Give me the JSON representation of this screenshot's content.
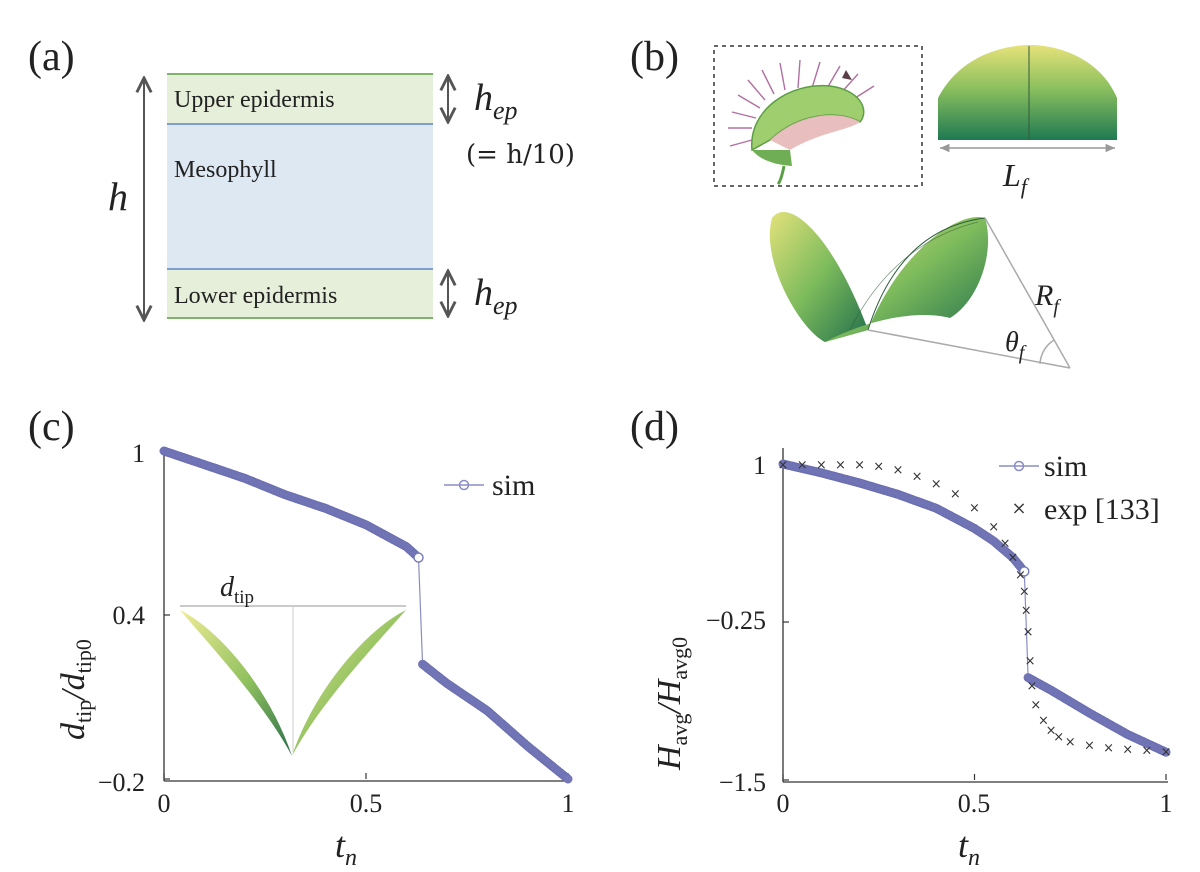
{
  "panels": {
    "a": {
      "label": "(a)",
      "layers": [
        "Upper epidermis",
        "Mesophyll",
        "Lower epidermis"
      ],
      "thickness_symbol": "h",
      "epidermis_symbol": "h",
      "epidermis_subscript": "ep",
      "epidermis_ratio": "(= h/10)",
      "colors": {
        "epidermis": "#e6efd9",
        "mesophyll": "#dde8f3",
        "boundary_green": "#7fb26a",
        "boundary_blue": "#5f86c2"
      }
    },
    "b": {
      "label": "(b)",
      "length_symbol": "L",
      "length_subscript": "f",
      "radius_symbol": "R",
      "radius_subscript": "f",
      "angle_symbol": "θ",
      "angle_subscript": "f",
      "colors": {
        "leaf_light": "#e6e27a",
        "leaf_dark": "#1f7a52"
      }
    },
    "c": {
      "label": "(c)",
      "inset_label": "d",
      "inset_subscript": "tip"
    },
    "d": {
      "label": "(d)"
    }
  },
  "chart_data": [
    {
      "type": "line",
      "panel": "c",
      "xlabel": "t",
      "xlabel_subscript": "n",
      "ylabel": "d_tip / d_tip0",
      "xlim": [
        0,
        1
      ],
      "ylim": [
        -0.2,
        1
      ],
      "xticks": [
        "0",
        "0.5",
        "1"
      ],
      "yticks": [
        "−0.2",
        "0.4",
        "1"
      ],
      "legend": [
        "sim"
      ],
      "series": [
        {
          "name": "sim",
          "color": "#7478b8",
          "segments": [
            {
              "x": [
                0,
                0.1,
                0.2,
                0.3,
                0.4,
                0.5,
                0.55,
                0.6,
                0.63
              ],
              "y": [
                1.0,
                0.95,
                0.9,
                0.84,
                0.79,
                0.73,
                0.69,
                0.65,
                0.61
              ]
            },
            {
              "x": [
                0.64,
                0.7,
                0.8,
                0.9,
                1.0
              ],
              "y": [
                0.22,
                0.15,
                0.05,
                -0.08,
                -0.2
              ]
            }
          ]
        }
      ]
    },
    {
      "type": "line",
      "panel": "d",
      "xlabel": "t",
      "xlabel_subscript": "n",
      "ylabel": "H_avg / H_avg0",
      "xlim": [
        0,
        1
      ],
      "ylim": [
        -1.5,
        1
      ],
      "xticks": [
        "0",
        "0.5",
        "1"
      ],
      "yticks": [
        "−1.5",
        "−0.25",
        "1"
      ],
      "legend": [
        "sim",
        "exp [133]"
      ],
      "series": [
        {
          "name": "sim",
          "color": "#7478b8",
          "segments": [
            {
              "x": [
                0,
                0.1,
                0.2,
                0.3,
                0.4,
                0.5,
                0.55,
                0.6,
                0.63
              ],
              "y": [
                1.0,
                0.93,
                0.85,
                0.76,
                0.65,
                0.49,
                0.39,
                0.26,
                0.15
              ]
            },
            {
              "x": [
                0.64,
                0.7,
                0.8,
                0.9,
                1.0
              ],
              "y": [
                -0.69,
                -0.79,
                -0.97,
                -1.14,
                -1.28
              ]
            }
          ]
        },
        {
          "name": "exp [133]",
          "color": "#333333",
          "x": [
            0,
            0.05,
            0.1,
            0.15,
            0.2,
            0.25,
            0.3,
            0.35,
            0.4,
            0.45,
            0.5,
            0.55,
            0.58,
            0.6,
            0.62,
            0.63,
            0.635,
            0.64,
            0.645,
            0.65,
            0.66,
            0.68,
            0.7,
            0.72,
            0.75,
            0.8,
            0.85,
            0.9,
            0.95,
            1.0
          ],
          "y": [
            1.0,
            1.0,
            1.0,
            1.0,
            1.0,
            0.99,
            0.96,
            0.91,
            0.85,
            0.77,
            0.66,
            0.51,
            0.38,
            0.27,
            0.13,
            0.0,
            -0.15,
            -0.32,
            -0.55,
            -0.75,
            -0.9,
            -1.02,
            -1.1,
            -1.15,
            -1.19,
            -1.22,
            -1.24,
            -1.25,
            -1.26,
            -1.27
          ]
        }
      ]
    }
  ]
}
